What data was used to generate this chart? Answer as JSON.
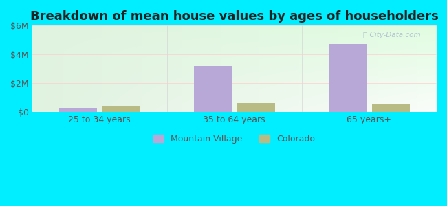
{
  "title": "Breakdown of mean house values by ages of householders",
  "categories": [
    "25 to 34 years",
    "35 to 64 years",
    "65 years+"
  ],
  "mountain_village": [
    300000,
    3200000,
    4750000
  ],
  "colorado": [
    380000,
    650000,
    580000
  ],
  "bar_color_mv": "#b8a8d8",
  "bar_color_co": "#b8bc84",
  "ylim": [
    0,
    6000000
  ],
  "yticks": [
    0,
    2000000,
    4000000,
    6000000
  ],
  "ytick_labels": [
    "$0",
    "$2M",
    "$4M",
    "$6M"
  ],
  "legend_mv": "Mountain Village",
  "legend_co": "Colorado",
  "bg_outer": "#00eeff",
  "title_fontsize": 13,
  "tick_fontsize": 9,
  "legend_fontsize": 9,
  "bar_width": 0.28,
  "title_color": "#222222",
  "tick_color": "#555555"
}
